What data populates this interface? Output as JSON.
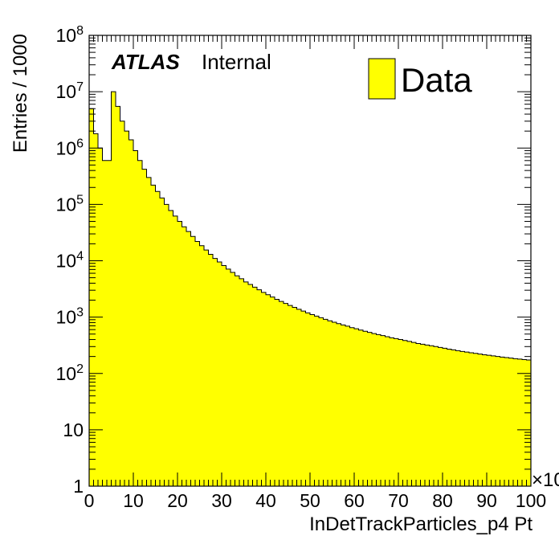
{
  "chart_data": {
    "type": "bar",
    "title": "",
    "xlabel": "InDetTrackParticles_p4 Pt",
    "ylabel": "Entries / 1000",
    "x_multiplier_label": "×10",
    "xlim": [
      0,
      100
    ],
    "ylim": [
      1,
      100000000
    ],
    "log_y": true,
    "bin_width": 1,
    "x_ticks": [
      "0",
      "10",
      "20",
      "30",
      "40",
      "50",
      "60",
      "70",
      "80",
      "90",
      "100"
    ],
    "y_ticks": [
      {
        "base": "1",
        "exp": ""
      },
      {
        "base": "10",
        "exp": ""
      },
      {
        "base": "10",
        "exp": "2"
      },
      {
        "base": "10",
        "exp": "3"
      },
      {
        "base": "10",
        "exp": "4"
      },
      {
        "base": "10",
        "exp": "5"
      },
      {
        "base": "10",
        "exp": "6"
      },
      {
        "base": "10",
        "exp": "7"
      },
      {
        "base": "10",
        "exp": "8"
      }
    ],
    "series": [
      {
        "name": "Data",
        "color": "#ffff00",
        "values": [
          5000000,
          1800000,
          1000000,
          600000,
          600000,
          10000000,
          5500000,
          3000000,
          2000000,
          1400000,
          900000,
          600000,
          420000,
          300000,
          220000,
          170000,
          130000,
          100000,
          78000,
          62000,
          50000,
          40000,
          33000,
          27000,
          22000,
          18500,
          15500,
          13000,
          11000,
          9500,
          8200,
          7100,
          6200,
          5400,
          4800,
          4200,
          3800,
          3400,
          3050,
          2750,
          2500,
          2270,
          2070,
          1900,
          1750,
          1610,
          1490,
          1380,
          1280,
          1190,
          1110,
          1040,
          975,
          915,
          860,
          810,
          765,
          725,
          690,
          650,
          620,
          590,
          560,
          535,
          510,
          490,
          470,
          450,
          430,
          415,
          400,
          385,
          370,
          355,
          340,
          330,
          320,
          310,
          300,
          290,
          280,
          270,
          262,
          254,
          246,
          240,
          233,
          227,
          221,
          215,
          210,
          205,
          200,
          195,
          191,
          187,
          183,
          180,
          176,
          173
        ]
      }
    ]
  },
  "labels": {
    "atlas": "ATLAS",
    "internal": "Internal",
    "legend_entry": "Data"
  }
}
